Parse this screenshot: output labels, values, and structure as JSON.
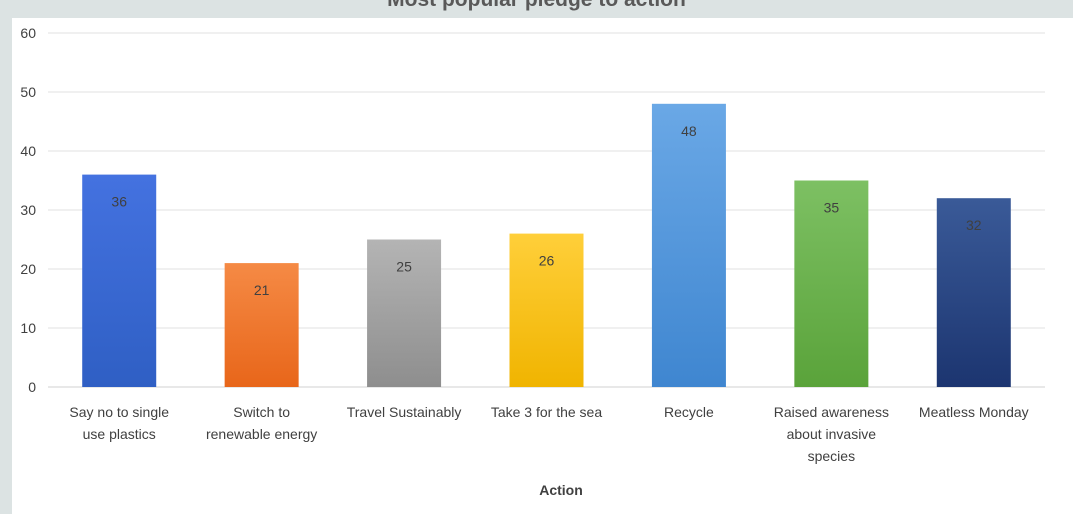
{
  "chart_data": {
    "type": "bar",
    "title": "Most popular pledge to action",
    "xlabel": "Action",
    "ylabel": "",
    "ylim": [
      0,
      60
    ],
    "yticks": [
      0,
      10,
      20,
      30,
      40,
      50,
      60
    ],
    "grid": true,
    "categories": [
      "Say no to single use plastics",
      "Switch to renewable  energy",
      "Travel Sustainably",
      "Take 3 for the sea",
      "Recycle",
      "Raised awareness about invasive species",
      "Meatless Monday"
    ],
    "category_lines": [
      [
        "Say no to single",
        "use plastics"
      ],
      [
        "Switch to",
        "renewable  energy"
      ],
      [
        "Travel Sustainably"
      ],
      [
        "Take 3 for the sea"
      ],
      [
        "Recycle"
      ],
      [
        "Raised awareness",
        "about invasive",
        "species"
      ],
      [
        "Meatless Monday"
      ]
    ],
    "values": [
      36,
      21,
      25,
      26,
      48,
      35,
      32
    ],
    "colors": [
      [
        "#4472e0",
        "#2f5fc4"
      ],
      [
        "#f58a45",
        "#e8661a"
      ],
      [
        "#b4b4b4",
        "#8e8e8e"
      ],
      [
        "#ffcf3a",
        "#f0b400"
      ],
      [
        "#6aa8e6",
        "#3f86d0"
      ],
      [
        "#7dc063",
        "#5aa33a"
      ],
      [
        "#3a5a98",
        "#1c3570"
      ]
    ]
  }
}
